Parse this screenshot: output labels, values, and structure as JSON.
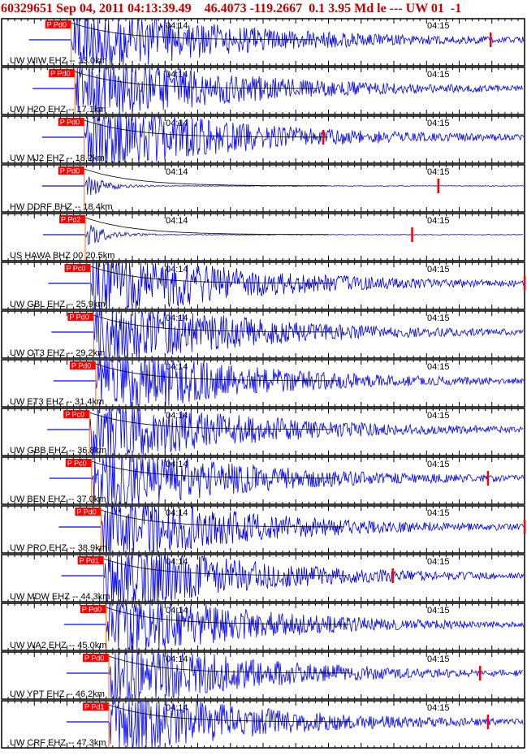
{
  "header": {
    "text": "60329651 Sep 04, 2011 04:13:39.49    46.4073 -119.2667  0.1 3.95 Md le --- UW 01  -1",
    "color": "#cc0000"
  },
  "colors": {
    "broadband_trace": "#1010a0",
    "short_period_trace": "#0000ff",
    "pick_box": "#ff0000",
    "coda_curve": "#000000",
    "panel_border": "#000000"
  },
  "chart_data": {
    "type": "line",
    "description_free": true,
    "time_ticks": [
      "04:14",
      "04:15"
    ],
    "panels": [
      {
        "label": "UW WIW EHZ -- 13.0km",
        "phase": "P Pd0",
        "kind": "short-period",
        "pick_frac": 0.133,
        "end_frac": 0.935,
        "amp": 1.0
      },
      {
        "label": "UW H2O EHZ -- 17.1km",
        "phase": "P Pd0",
        "kind": "short-period",
        "pick_frac": 0.14,
        "end_frac": null,
        "amp": 1.0
      },
      {
        "label": "UW MJ2 EHZ -- 18.2km",
        "phase": "P Pd0",
        "kind": "short-period",
        "pick_frac": 0.158,
        "end_frac": 0.615,
        "amp": 1.0
      },
      {
        "label": "HW DDRF BHZ -- 18.4km",
        "phase": "P Pd0",
        "kind": "broadband",
        "pick_frac": 0.158,
        "end_frac": 0.835,
        "amp": 0.55
      },
      {
        "label": "US HAWA BHZ 00 20.5km",
        "phase": "P Pd2",
        "kind": "broadband",
        "pick_frac": 0.16,
        "end_frac": 0.785,
        "amp": 0.6
      },
      {
        "label": "UW GBL EHZ -- 25.9km",
        "phase": "P Pc0",
        "kind": "short-period",
        "pick_frac": 0.17,
        "end_frac": 1.0,
        "amp": 1.0
      },
      {
        "label": "UW OT3 EHZ -- 29.2km",
        "phase": "P Pd0",
        "kind": "short-period",
        "pick_frac": 0.176,
        "end_frac": null,
        "amp": 1.0
      },
      {
        "label": "UW ET3 EHZ -- 31.4km",
        "phase": "P Pd0",
        "kind": "short-period",
        "pick_frac": 0.18,
        "end_frac": null,
        "amp": 1.0
      },
      {
        "label": "UW GBB EHZ -- 36.8km",
        "phase": "P Pc0",
        "kind": "short-period",
        "pick_frac": 0.168,
        "end_frac": null,
        "amp": 1.0
      },
      {
        "label": "UW BEN EHZ -- 37.0km",
        "phase": "P Pc0",
        "kind": "short-period",
        "pick_frac": 0.172,
        "end_frac": 0.93,
        "amp": 1.0
      },
      {
        "label": "UW PRO EHZ -- 38.9km",
        "phase": "P Pd0",
        "kind": "short-period",
        "pick_frac": 0.19,
        "end_frac": 1.0,
        "amp": 1.0
      },
      {
        "label": "UW MDW EHZ -- 44.3km",
        "phase": "P Pd1",
        "kind": "short-period",
        "pick_frac": 0.195,
        "end_frac": 0.748,
        "amp": 1.0
      },
      {
        "label": "UW WA2 EHZ -- 45.0km",
        "phase": "P Pd0",
        "kind": "short-period",
        "pick_frac": 0.2,
        "end_frac": null,
        "amp": 1.0
      },
      {
        "label": "UW YPT EHZ -- 46.2km",
        "phase": "P Pd0",
        "kind": "short-period",
        "pick_frac": 0.205,
        "end_frac": 0.915,
        "amp": 1.0
      },
      {
        "label": "UW CRF EHZ -- 47.3km",
        "phase": "P Pd1",
        "kind": "short-period",
        "pick_frac": 0.205,
        "end_frac": 0.93,
        "amp": 1.0
      }
    ]
  }
}
